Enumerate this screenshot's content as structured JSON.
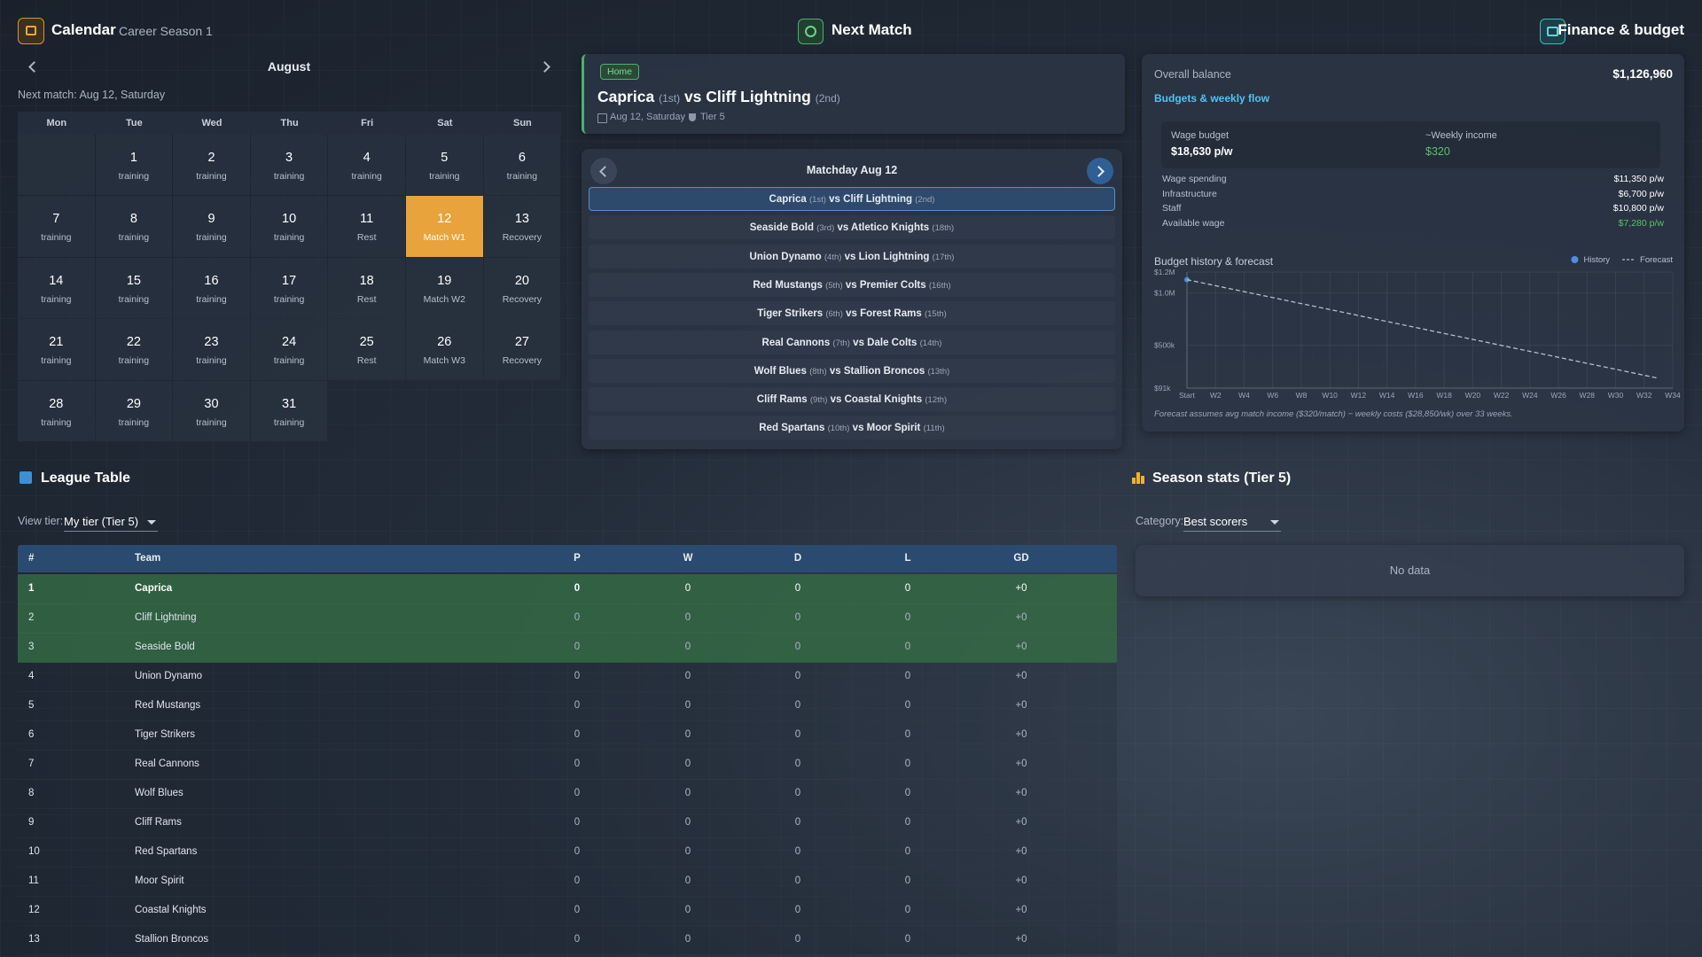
{
  "calendar": {
    "title": "Calendar",
    "subtitle": "Career Season 1",
    "month": "August",
    "next_match": "Next match: Aug 12, Saturday",
    "weekdays": [
      "Mon",
      "Tue",
      "Wed",
      "Thu",
      "Fri",
      "Sat",
      "Sun"
    ],
    "days": [
      null,
      {
        "day": 1,
        "note": "training"
      },
      {
        "day": 2,
        "note": "training"
      },
      {
        "day": 3,
        "note": "training"
      },
      {
        "day": 4,
        "note": "training"
      },
      {
        "day": 5,
        "note": "training"
      },
      {
        "day": 6,
        "note": "training"
      },
      {
        "day": 7,
        "note": "training"
      },
      {
        "day": 8,
        "note": "training"
      },
      {
        "day": 9,
        "note": "training"
      },
      {
        "day": 10,
        "note": "training"
      },
      {
        "day": 11,
        "note": "Rest"
      },
      {
        "day": 12,
        "note": "Match W1",
        "highlight": true
      },
      {
        "day": 13,
        "note": "Recovery"
      },
      {
        "day": 14,
        "note": "training"
      },
      {
        "day": 15,
        "note": "training"
      },
      {
        "day": 16,
        "note": "training"
      },
      {
        "day": 17,
        "note": "training"
      },
      {
        "day": 18,
        "note": "Rest"
      },
      {
        "day": 19,
        "note": "Match W2"
      },
      {
        "day": 20,
        "note": "Recovery"
      },
      {
        "day": 21,
        "note": "training"
      },
      {
        "day": 22,
        "note": "training"
      },
      {
        "day": 23,
        "note": "training"
      },
      {
        "day": 24,
        "note": "training"
      },
      {
        "day": 25,
        "note": "Rest"
      },
      {
        "day": 26,
        "note": "Match W3"
      },
      {
        "day": 27,
        "note": "Recovery"
      },
      {
        "day": 28,
        "note": "training"
      },
      {
        "day": 29,
        "note": "training"
      },
      {
        "day": 30,
        "note": "training"
      },
      {
        "day": 31,
        "note": "training"
      }
    ]
  },
  "next_match": {
    "title": "Next Match",
    "venue": "Home",
    "versus": "vs",
    "match": {
      "home": "Caprica",
      "home_rank": "(1st)",
      "away": "Cliff Lightning",
      "away_rank": "(2nd)"
    },
    "date": "Aug 12, Saturday",
    "tier": "Tier 5",
    "matchday": "Matchday Aug 12",
    "fixtures": [
      {
        "home": "Caprica",
        "home_rank": "(1st)",
        "away": "Cliff Lightning",
        "away_rank": "(2nd)"
      },
      {
        "home": "Seaside Bold",
        "home_rank": "(3rd)",
        "away": "Atletico Knights",
        "away_rank": "(18th)"
      },
      {
        "home": "Union Dynamo",
        "home_rank": "(4th)",
        "away": "Lion Lightning",
        "away_rank": "(17th)"
      },
      {
        "home": "Red Mustangs",
        "home_rank": "(5th)",
        "away": "Premier Colts",
        "away_rank": "(16th)"
      },
      {
        "home": "Tiger Strikers",
        "home_rank": "(6th)",
        "away": "Forest Rams",
        "away_rank": "(15th)"
      },
      {
        "home": "Real Cannons",
        "home_rank": "(7th)",
        "away": "Dale Colts",
        "away_rank": "(14th)"
      },
      {
        "home": "Wolf Blues",
        "home_rank": "(8th)",
        "away": "Stallion Broncos",
        "away_rank": "(13th)"
      },
      {
        "home": "Cliff Rams",
        "home_rank": "(9th)",
        "away": "Coastal Knights",
        "away_rank": "(12th)"
      },
      {
        "home": "Red Spartans",
        "home_rank": "(10th)",
        "away": "Moor Spirit",
        "away_rank": "(11th)"
      }
    ]
  },
  "finance": {
    "title": "Finance & budget",
    "balance_label": "Overall balance",
    "balance": "$1,126,960",
    "link": "Budgets & weekly flow",
    "wage_budget_label": "Wage budget",
    "wage_budget": "$18,630 p/w",
    "weekly_income_label": "~Weekly income",
    "weekly_income": "$320",
    "rows": [
      {
        "label": "Wage spending",
        "value": "$11,350 p/w"
      },
      {
        "label": "Infrastructure",
        "value": "$6,700 p/w"
      },
      {
        "label": "Staff",
        "value": "$10,800 p/w"
      },
      {
        "label": "Available wage",
        "value": "$7,280 p/w"
      }
    ],
    "chart_data": {
      "type": "line",
      "title": "Budget history & forecast",
      "xlim": [
        0,
        34
      ],
      "xticks": [
        {
          "value": 0,
          "label": "Start"
        },
        {
          "value": 2,
          "label": "W2"
        },
        {
          "value": 4,
          "label": "W4"
        },
        {
          "value": 6,
          "label": "W6"
        },
        {
          "value": 8,
          "label": "W8"
        },
        {
          "value": 10,
          "label": "W10"
        },
        {
          "value": 12,
          "label": "W12"
        },
        {
          "value": 14,
          "label": "W14"
        },
        {
          "value": 16,
          "label": "W16"
        },
        {
          "value": 18,
          "label": "W18"
        },
        {
          "value": 20,
          "label": "W20"
        },
        {
          "value": 22,
          "label": "W22"
        },
        {
          "value": 24,
          "label": "W24"
        },
        {
          "value": 26,
          "label": "W26"
        },
        {
          "value": 28,
          "label": "W28"
        },
        {
          "value": 30,
          "label": "W30"
        },
        {
          "value": 32,
          "label": "W32"
        },
        {
          "value": 34,
          "label": "W34"
        }
      ],
      "ylim": [
        91000,
        1200000
      ],
      "yticks": [
        {
          "value": 91000,
          "label": "$91k"
        },
        {
          "value": 500000,
          "label": "$500k"
        },
        {
          "value": 1000000,
          "label": "$1.0M"
        },
        {
          "value": 1200000,
          "label": "$1.2M"
        }
      ],
      "grid": true,
      "legend": "top-right",
      "series": [
        {
          "name": "History",
          "color": "#4a90e2",
          "x": [
            0
          ],
          "values": [
            1126960
          ]
        },
        {
          "name": "Forecast",
          "color": "#b4bfcc",
          "dashed": true,
          "x": [
            0,
            33
          ],
          "values": [
            1126960,
            185470
          ]
        }
      ]
    },
    "footnote": "Forecast assumes avg match income ($320/match) − weekly costs ($28,850/wk) over 33 weeks."
  },
  "league_table": {
    "title": "League Table",
    "view_tier_label": "View tier:",
    "view_tier": "My tier (Tier 5)",
    "columns": [
      "#",
      "Team",
      "P",
      "W",
      "D",
      "L",
      "GD"
    ],
    "rows": [
      [
        1,
        "Caprica",
        0,
        0,
        0,
        0,
        "+0"
      ],
      [
        2,
        "Cliff Lightning",
        0,
        0,
        0,
        0,
        "+0"
      ],
      [
        3,
        "Seaside Bold",
        0,
        0,
        0,
        0,
        "+0"
      ],
      [
        4,
        "Union Dynamo",
        0,
        0,
        0,
        0,
        "+0"
      ],
      [
        5,
        "Red Mustangs",
        0,
        0,
        0,
        0,
        "+0"
      ],
      [
        6,
        "Tiger Strikers",
        0,
        0,
        0,
        0,
        "+0"
      ],
      [
        7,
        "Real Cannons",
        0,
        0,
        0,
        0,
        "+0"
      ],
      [
        8,
        "Wolf Blues",
        0,
        0,
        0,
        0,
        "+0"
      ],
      [
        9,
        "Cliff Rams",
        0,
        0,
        0,
        0,
        "+0"
      ],
      [
        10,
        "Red Spartans",
        0,
        0,
        0,
        0,
        "+0"
      ],
      [
        11,
        "Moor Spirit",
        0,
        0,
        0,
        0,
        "+0"
      ],
      [
        12,
        "Coastal Knights",
        0,
        0,
        0,
        0,
        "+0"
      ],
      [
        13,
        "Stallion Broncos",
        0,
        0,
        0,
        0,
        "+0"
      ]
    ]
  },
  "season_stats": {
    "title": "Season stats (Tier 5)",
    "category_label": "Category:",
    "category": "Best scorers",
    "empty": "No data"
  }
}
